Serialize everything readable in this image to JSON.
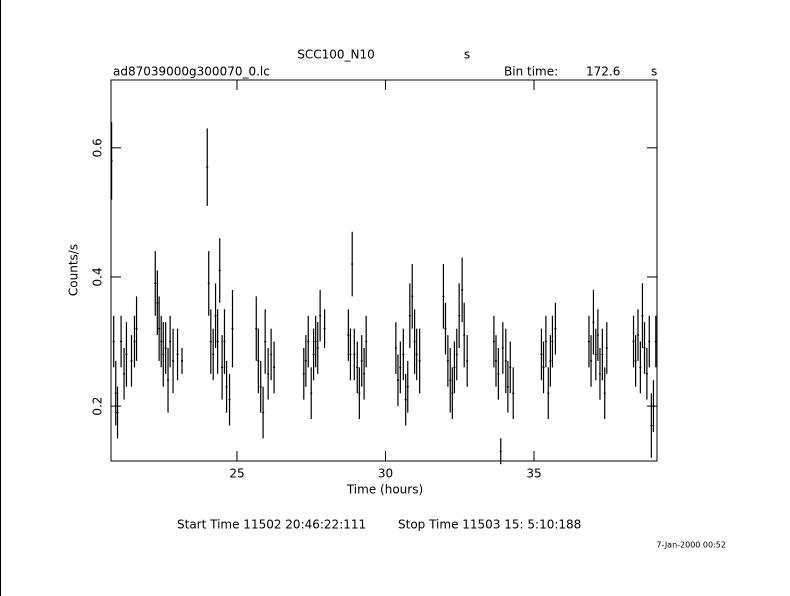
{
  "chart_data": {
    "type": "errorbar",
    "title": "SCC100_N10",
    "title_unit": "s",
    "file_name": "ad87039000g300070_0.lc",
    "bin_label": "Bin time:",
    "bin_time": "172.6",
    "bin_unit": "s",
    "xlabel": "Time (hours)",
    "ylabel": "Counts/s",
    "start_time": "Start Time 11502 20:46:22:111",
    "stop_time": "Stop Time 11503 15: 5:10:188",
    "date_stamp": "7-Jan-2000 00:52",
    "color": "#000000",
    "xlim": [
      20.76,
      39.14
    ],
    "xticks": [
      25,
      30,
      35
    ],
    "ylim": [
      0.115,
      0.705
    ],
    "yticks": [
      0.2,
      0.4,
      0.6
    ],
    "x": [
      20.78,
      20.85,
      20.92,
      20.98,
      21.1,
      21.2,
      21.28,
      21.45,
      21.55,
      21.62,
      22.25,
      22.32,
      22.38,
      22.45,
      22.52,
      22.6,
      22.68,
      22.75,
      22.85,
      23.0,
      23.15,
      24.0,
      24.05,
      24.12,
      24.2,
      24.28,
      24.35,
      24.42,
      24.5,
      24.58,
      24.65,
      24.75,
      24.85,
      25.65,
      25.72,
      25.8,
      25.88,
      25.95,
      26.05,
      26.15,
      26.25,
      27.25,
      27.32,
      27.4,
      27.5,
      27.58,
      27.65,
      27.72,
      27.8,
      27.95,
      28.75,
      28.82,
      28.88,
      28.95,
      29.05,
      29.12,
      29.2,
      29.28,
      29.35,
      30.35,
      30.42,
      30.5,
      30.6,
      30.68,
      30.75,
      30.82,
      30.9,
      30.98,
      31.05,
      31.15,
      31.95,
      32.02,
      32.1,
      32.18,
      32.25,
      32.32,
      32.4,
      32.48,
      32.58,
      32.65,
      32.75,
      33.65,
      33.72,
      33.8,
      33.88,
      33.95,
      34.05,
      34.12,
      34.2,
      34.3,
      35.25,
      35.32,
      35.4,
      35.48,
      35.55,
      35.62,
      35.72,
      36.85,
      36.92,
      37.0,
      37.08,
      37.15,
      37.22,
      37.3,
      37.38,
      37.45,
      38.35,
      38.42,
      38.5,
      38.58,
      38.65,
      38.72,
      38.8,
      38.88,
      38.95,
      39.02,
      39.1
    ],
    "values": [
      0.58,
      0.3,
      0.22,
      0.19,
      0.3,
      0.25,
      0.28,
      0.27,
      0.3,
      0.32,
      0.39,
      0.36,
      0.32,
      0.3,
      0.28,
      0.29,
      0.24,
      0.3,
      0.27,
      0.28,
      0.27,
      0.57,
      0.39,
      0.3,
      0.28,
      0.34,
      0.3,
      0.41,
      0.26,
      0.3,
      0.23,
      0.21,
      0.32,
      0.32,
      0.27,
      0.23,
      0.19,
      0.3,
      0.25,
      0.28,
      0.26,
      0.25,
      0.27,
      0.3,
      0.22,
      0.28,
      0.3,
      0.29,
      0.34,
      0.32,
      0.31,
      0.28,
      0.42,
      0.28,
      0.26,
      0.22,
      0.27,
      0.25,
      0.3,
      0.29,
      0.24,
      0.26,
      0.28,
      0.21,
      0.23,
      0.34,
      0.37,
      0.3,
      0.28,
      0.27,
      0.37,
      0.32,
      0.27,
      0.24,
      0.22,
      0.26,
      0.28,
      0.34,
      0.38,
      0.31,
      0.27,
      0.3,
      0.27,
      0.25,
      0.13,
      0.29,
      0.27,
      0.23,
      0.26,
      0.22,
      0.28,
      0.26,
      0.3,
      0.22,
      0.27,
      0.3,
      0.32,
      0.3,
      0.27,
      0.33,
      0.28,
      0.31,
      0.25,
      0.28,
      0.22,
      0.29,
      0.3,
      0.27,
      0.31,
      0.26,
      0.34,
      0.29,
      0.25,
      0.3,
      0.17,
      0.2,
      0.3
    ],
    "errors": [
      0.06,
      0.04,
      0.05,
      0.04,
      0.04,
      0.04,
      0.05,
      0.04,
      0.04,
      0.05,
      0.05,
      0.05,
      0.05,
      0.04,
      0.05,
      0.04,
      0.05,
      0.04,
      0.05,
      0.04,
      0.02,
      0.06,
      0.05,
      0.05,
      0.04,
      0.05,
      0.05,
      0.05,
      0.05,
      0.05,
      0.04,
      0.04,
      0.06,
      0.05,
      0.05,
      0.04,
      0.04,
      0.05,
      0.04,
      0.04,
      0.04,
      0.04,
      0.04,
      0.04,
      0.04,
      0.04,
      0.04,
      0.04,
      0.04,
      0.03,
      0.04,
      0.04,
      0.05,
      0.04,
      0.04,
      0.04,
      0.04,
      0.04,
      0.04,
      0.04,
      0.04,
      0.04,
      0.04,
      0.04,
      0.04,
      0.05,
      0.05,
      0.05,
      0.04,
      0.05,
      0.05,
      0.04,
      0.04,
      0.05,
      0.04,
      0.04,
      0.04,
      0.05,
      0.05,
      0.05,
      0.04,
      0.04,
      0.04,
      0.04,
      0.02,
      0.04,
      0.05,
      0.04,
      0.04,
      0.04,
      0.04,
      0.04,
      0.04,
      0.04,
      0.04,
      0.04,
      0.04,
      0.04,
      0.04,
      0.05,
      0.04,
      0.04,
      0.04,
      0.04,
      0.04,
      0.04,
      0.04,
      0.04,
      0.04,
      0.04,
      0.05,
      0.04,
      0.04,
      0.04,
      0.05,
      0.04,
      0.04
    ]
  }
}
